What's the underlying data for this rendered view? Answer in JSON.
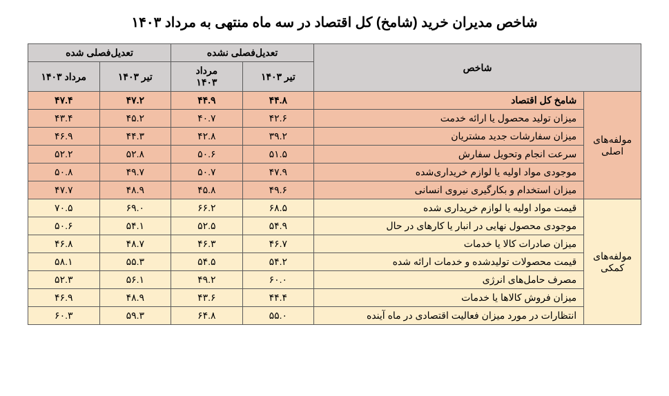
{
  "title": "شاخص مدیران خرید (شامخ) کل اقتصاد در سه ماه منتهی به مرداد ۱۴۰۳",
  "headers": {
    "indicator": "شاخص",
    "non_adjusted": "تعدیل‌فصلی نشده",
    "adjusted": "تعدیل‌فصلی شده",
    "tir": "تیر ۱۴۰۳",
    "mordad": "مرداد",
    "y1403": "۱۴۰۳",
    "mordad_1403": "مرداد ۱۴۰۳"
  },
  "groups": {
    "main": "مولفه‌های اصلی",
    "aux": "مولفه‌های کمکی"
  },
  "rows": {
    "total": {
      "label": "شامخ  کل اقتصاد",
      "na_tir": "۴۴.۸",
      "na_mordad": "۴۴.۹",
      "adj_tir": "۴۷.۲",
      "adj_mordad": "۴۷.۴"
    },
    "production": {
      "label": "میزان تولید محصول یا ارائه خدمت",
      "na_tir": "۴۲.۶",
      "na_mordad": "۴۰.۷",
      "adj_tir": "۴۵.۲",
      "adj_mordad": "۴۳.۴"
    },
    "orders": {
      "label": "میزان سفارشات جدید مشتریان",
      "na_tir": "۳۹.۲",
      "na_mordad": "۴۲.۸",
      "adj_tir": "۴۴.۳",
      "adj_mordad": "۴۶.۹"
    },
    "delivery": {
      "label": "سرعت انجام وتحویل سفارش",
      "na_tir": "۵۱.۵",
      "na_mordad": "۵۰.۶",
      "adj_tir": "۵۲.۸",
      "adj_mordad": "۵۲.۲"
    },
    "inventory_raw": {
      "label": "موجودی مواد اولیه یا لوازم خریداری‌شده",
      "na_tir": "۴۷.۹",
      "na_mordad": "۵۰.۷",
      "adj_tir": "۴۹.۷",
      "adj_mordad": "۵۰.۸"
    },
    "employment": {
      "label": "میزان استخدام و بکارگیری نیروی انسانی",
      "na_tir": "۴۹.۶",
      "na_mordad": "۴۵.۸",
      "adj_tir": "۴۸.۹",
      "adj_mordad": "۴۷.۷"
    },
    "input_price": {
      "label": "قیمت مواد اولیه یا لوازم خریداری شده",
      "na_tir": "۶۸.۵",
      "na_mordad": "۶۶.۲",
      "adj_tir": "۶۹.۰",
      "adj_mordad": "۷۰.۵"
    },
    "finished_inventory": {
      "label": "موجودی محصول نهایی در انبار یا کارهای در حال",
      "na_tir": "۵۴.۹",
      "na_mordad": "۵۲.۵",
      "adj_tir": "۵۴.۱",
      "adj_mordad": "۵۰.۶"
    },
    "exports": {
      "label": "میزان صادرات کالا یا خدمات",
      "na_tir": "۴۶.۷",
      "na_mordad": "۴۶.۳",
      "adj_tir": "۴۸.۷",
      "adj_mordad": "۴۶.۸"
    },
    "output_price": {
      "label": "قیمت محصولات تولیدشده و خدمات ارائه شده",
      "na_tir": "۵۴.۲",
      "na_mordad": "۵۴.۵",
      "adj_tir": "۵۵.۳",
      "adj_mordad": "۵۸.۱"
    },
    "energy": {
      "label": "مصرف حامل‌های انرژی",
      "na_tir": "۶۰.۰",
      "na_mordad": "۴۹.۲",
      "adj_tir": "۵۶.۱",
      "adj_mordad": "۵۲.۳"
    },
    "sales": {
      "label": "میزان فروش کالاها یا خدمات",
      "na_tir": "۴۴.۴",
      "na_mordad": "۴۳.۶",
      "adj_tir": "۴۸.۹",
      "adj_mordad": "۴۶.۹"
    },
    "expectations": {
      "label": "انتظارات در مورد میزان فعالیت اقتصادی در ماه آینده",
      "na_tir": "۵۵.۰",
      "na_mordad": "۶۴.۸",
      "adj_tir": "۵۹.۳",
      "adj_mordad": "۶۰.۳"
    }
  },
  "style": {
    "colors": {
      "header_gray": "#d2cfcf",
      "peach": "#f2c0a6",
      "cream": "#fdeecb",
      "border": "#5a5a5a",
      "background": "#ffffff",
      "text": "#000000"
    },
    "font": {
      "family": "Tahoma",
      "title_size": 20,
      "cell_size": 14
    },
    "cols": {
      "side": 72,
      "indicator": 340,
      "value": 90
    }
  }
}
